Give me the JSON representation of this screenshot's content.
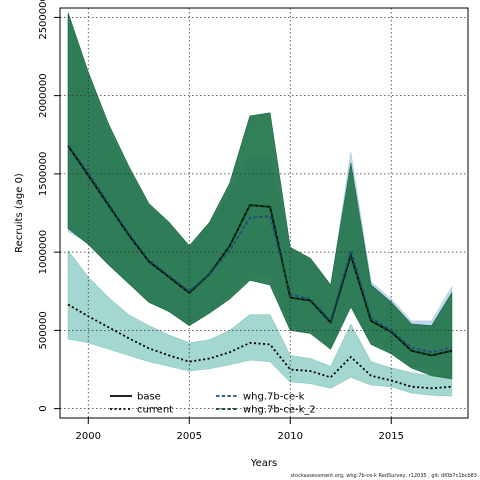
{
  "chart_data": {
    "type": "line",
    "xlabel": "Years",
    "ylabel": "Recruits (age 0)",
    "xlim": [
      1998.6,
      2018.8
    ],
    "ylim": [
      -60000,
      2560000
    ],
    "x_ticks": [
      2000,
      2005,
      2010,
      2015
    ],
    "x_tick_labels": [
      "2000",
      "2005",
      "2010",
      "2015"
    ],
    "y_ticks": [
      0,
      500000,
      1000000,
      1500000,
      2000000,
      2500000
    ],
    "y_tick_labels": [
      "0",
      "500000",
      "1000000",
      "1500000",
      "2000000",
      "2500000"
    ],
    "grid": true,
    "legend_position": "bottom-left",
    "x": [
      1999,
      2000,
      2001,
      2002,
      2003,
      2004,
      2005,
      2006,
      2007,
      2008,
      2009,
      2010,
      2011,
      2012,
      2013,
      2014,
      2015,
      2016,
      2017,
      2018
    ],
    "bands": [
      {
        "name": "current",
        "color": "#7fc7bd",
        "lower": [
          445000,
          420000,
          380000,
          340000,
          300000,
          270000,
          240000,
          255000,
          280000,
          310000,
          300000,
          170000,
          160000,
          130000,
          200000,
          150000,
          140000,
          100000,
          85000,
          80000
        ],
        "upper": [
          1010000,
          840000,
          710000,
          600000,
          530000,
          470000,
          420000,
          440000,
          500000,
          600000,
          600000,
          340000,
          320000,
          270000,
          540000,
          300000,
          260000,
          230000,
          210000,
          220000
        ]
      },
      {
        "name": "whg.7b-ce-k",
        "color": "#a9c8e9",
        "lower": [
          1130000,
          1060000,
          930000,
          800000,
          680000,
          620000,
          540000,
          620000,
          720000,
          880000,
          840000,
          510000,
          500000,
          400000,
          660000,
          440000,
          380000,
          270000,
          250000,
          220000
        ],
        "upper": [
          2510000,
          2100000,
          1780000,
          1510000,
          1290000,
          1170000,
          1020000,
          1180000,
          1370000,
          1620000,
          1620000,
          1000000,
          950000,
          780000,
          1640000,
          810000,
          700000,
          560000,
          560000,
          780000
        ]
      },
      {
        "name": "base",
        "color": "#2e8b57",
        "lower": [
          1150000,
          1050000,
          920000,
          800000,
          680000,
          620000,
          530000,
          610000,
          700000,
          820000,
          790000,
          500000,
          480000,
          380000,
          650000,
          410000,
          350000,
          260000,
          210000,
          190000
        ],
        "upper": [
          2530000,
          2150000,
          1820000,
          1550000,
          1310000,
          1190000,
          1040000,
          1190000,
          1440000,
          1870000,
          1890000,
          1030000,
          960000,
          790000,
          1570000,
          790000,
          680000,
          540000,
          530000,
          740000
        ]
      },
      {
        "name": "whg.7b-ce-k_2",
        "color": "#1f6e48",
        "lower": [
          1150000,
          1050000,
          920000,
          800000,
          680000,
          620000,
          530000,
          610000,
          700000,
          820000,
          790000,
          500000,
          480000,
          380000,
          650000,
          410000,
          350000,
          260000,
          210000,
          190000
        ],
        "upper": [
          2530000,
          2150000,
          1820000,
          1550000,
          1310000,
          1190000,
          1040000,
          1190000,
          1440000,
          1870000,
          1890000,
          1030000,
          960000,
          790000,
          1570000,
          790000,
          680000,
          540000,
          530000,
          740000
        ]
      }
    ],
    "series": [
      {
        "name": "base",
        "color": "#000000",
        "dash": "solid",
        "width": 1.8,
        "values": [
          1680000,
          1490000,
          1300000,
          1110000,
          940000,
          840000,
          740000,
          860000,
          1040000,
          1300000,
          1290000,
          710000,
          690000,
          550000,
          980000,
          560000,
          490000,
          370000,
          340000,
          370000
        ]
      },
      {
        "name": "current",
        "color": "#000000",
        "dash": "dotted",
        "width": 1.8,
        "values": [
          665000,
          590000,
          520000,
          450000,
          385000,
          340000,
          300000,
          320000,
          360000,
          420000,
          410000,
          250000,
          240000,
          200000,
          330000,
          210000,
          180000,
          140000,
          130000,
          140000
        ]
      },
      {
        "name": "whg.7b-ce-k",
        "color": "#1f4e79",
        "dash": "dashed",
        "width": 1.8,
        "values": [
          1680000,
          1510000,
          1310000,
          1120000,
          950000,
          850000,
          750000,
          860000,
          1010000,
          1220000,
          1230000,
          730000,
          700000,
          560000,
          1010000,
          580000,
          500000,
          390000,
          360000,
          390000
        ]
      },
      {
        "name": "whg.7b-ce-k_2",
        "color": "#0d3d1f",
        "dash": "dashed",
        "width": 1.8,
        "values": [
          1680000,
          1490000,
          1300000,
          1110000,
          940000,
          840000,
          740000,
          860000,
          1040000,
          1300000,
          1290000,
          710000,
          690000,
          550000,
          980000,
          560000,
          490000,
          370000,
          340000,
          370000
        ]
      }
    ],
    "legend": [
      {
        "label": "base",
        "color": "#000000",
        "dash": "solid"
      },
      {
        "label": "current",
        "color": "#000000",
        "dash": "dotted"
      },
      {
        "label": "whg.7b-ce-k",
        "color": "#1f4e79",
        "dash": "dashed"
      },
      {
        "label": "whg.7b-ce-k_2",
        "color": "#0d3d1f",
        "dash": "dashed"
      }
    ]
  },
  "footer": "stockassessment.org, whg.7b-ce-k RedSurvey, r12035 , git: df0b7c1bcb83"
}
